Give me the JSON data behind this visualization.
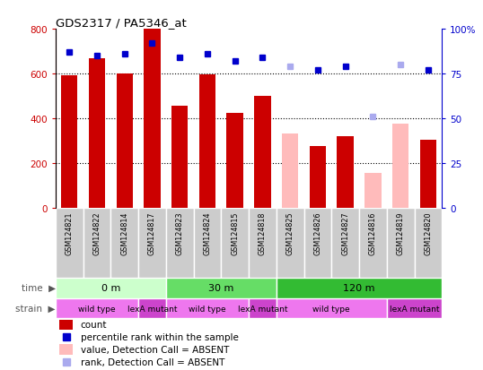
{
  "title": "GDS2317 / PA5346_at",
  "samples": [
    "GSM124821",
    "GSM124822",
    "GSM124814",
    "GSM124817",
    "GSM124823",
    "GSM124824",
    "GSM124815",
    "GSM124818",
    "GSM124825",
    "GSM124826",
    "GSM124827",
    "GSM124816",
    "GSM124819",
    "GSM124820"
  ],
  "bar_values": [
    590,
    670,
    600,
    800,
    455,
    595,
    425,
    500,
    330,
    275,
    320,
    155,
    375,
    305
  ],
  "bar_absent": [
    false,
    false,
    false,
    false,
    false,
    false,
    false,
    false,
    true,
    false,
    false,
    true,
    true,
    false
  ],
  "percentile_values": [
    87,
    85,
    86,
    92,
    84,
    86,
    82,
    84,
    79,
    77,
    79,
    51,
    80,
    77
  ],
  "percentile_absent": [
    false,
    false,
    false,
    false,
    false,
    false,
    false,
    false,
    true,
    false,
    false,
    true,
    true,
    false
  ],
  "bar_color_present": "#cc0000",
  "bar_color_absent": "#ffbbbb",
  "dot_color_present": "#0000cc",
  "dot_color_absent": "#aaaaee",
  "ylim_left": [
    0,
    800
  ],
  "ylim_right": [
    0,
    100
  ],
  "yticks_left": [
    0,
    200,
    400,
    600,
    800
  ],
  "yticks_right": [
    0,
    25,
    50,
    75,
    100
  ],
  "ytick_labels_right": [
    "0",
    "25",
    "50",
    "75",
    "100%"
  ],
  "time_groups": [
    {
      "label": "0 m",
      "start": 0,
      "end": 4,
      "color": "#ccffcc"
    },
    {
      "label": "30 m",
      "start": 4,
      "end": 8,
      "color": "#66dd66"
    },
    {
      "label": "120 m",
      "start": 8,
      "end": 14,
      "color": "#33bb33"
    }
  ],
  "strain_groups": [
    {
      "label": "wild type",
      "start": 0,
      "end": 3,
      "color": "#ee77ee"
    },
    {
      "label": "lexA mutant",
      "start": 3,
      "end": 4,
      "color": "#cc44cc"
    },
    {
      "label": "wild type",
      "start": 4,
      "end": 7,
      "color": "#ee77ee"
    },
    {
      "label": "lexA mutant",
      "start": 7,
      "end": 8,
      "color": "#cc44cc"
    },
    {
      "label": "wild type",
      "start": 8,
      "end": 12,
      "color": "#ee77ee"
    },
    {
      "label": "lexA mutant",
      "start": 12,
      "end": 14,
      "color": "#cc44cc"
    }
  ],
  "legend_items": [
    {
      "label": "count",
      "color": "#cc0000",
      "type": "bar"
    },
    {
      "label": "percentile rank within the sample",
      "color": "#0000cc",
      "type": "dot"
    },
    {
      "label": "value, Detection Call = ABSENT",
      "color": "#ffbbbb",
      "type": "bar"
    },
    {
      "label": "rank, Detection Call = ABSENT",
      "color": "#aaaaee",
      "type": "dot"
    }
  ],
  "label_area_color": "#cccccc",
  "time_label": "time",
  "strain_label": "strain",
  "bg_color": "#ffffff",
  "tick_color_left": "#cc0000",
  "tick_color_right": "#0000cc",
  "grid_yticks": [
    200,
    400,
    600
  ]
}
